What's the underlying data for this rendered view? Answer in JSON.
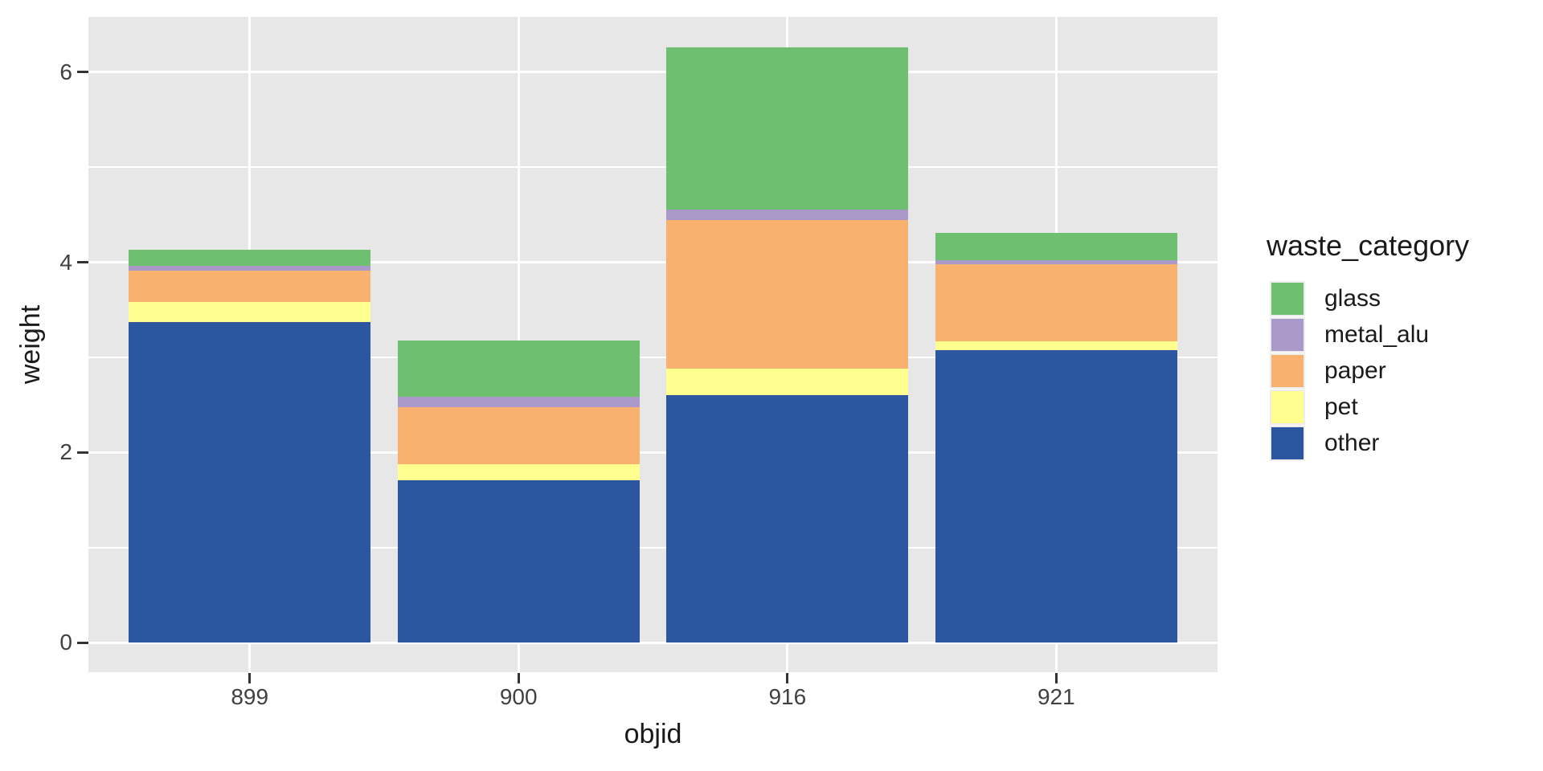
{
  "chart_data": {
    "type": "bar",
    "stacked": true,
    "title": "",
    "xlabel": "objid",
    "ylabel": "weight",
    "categories": [
      "899",
      "900",
      "916",
      "921"
    ],
    "series": [
      {
        "name": "other",
        "color": "#2d56a1",
        "values": [
          3.37,
          1.71,
          2.6,
          3.08
        ]
      },
      {
        "name": "pet",
        "color": "#ffff8f",
        "values": [
          0.21,
          0.17,
          0.28,
          0.09
        ]
      },
      {
        "name": "paper",
        "color": "#f9b170",
        "values": [
          0.33,
          0.6,
          1.56,
          0.81
        ]
      },
      {
        "name": "metal_alu",
        "color": "#aa99c9",
        "values": [
          0.05,
          0.11,
          0.11,
          0.04
        ]
      },
      {
        "name": "glass",
        "color": "#6ec070",
        "values": [
          0.17,
          0.59,
          1.71,
          0.29
        ]
      }
    ],
    "bar_totals": [
      4.13,
      3.18,
      6.26,
      4.31
    ],
    "y_ticks": [
      0,
      2,
      4,
      6
    ],
    "y_minor_ticks": [
      1,
      3,
      5
    ],
    "ylim": [
      -0.31,
      6.58
    ],
    "bar_rel_width": 0.9,
    "grid": true,
    "colors": {
      "panel_bg": "#e7e7e7",
      "grid": "#ffffff",
      "tick_text": "#404040",
      "title_text": "#1a1a1a"
    },
    "legend": {
      "title": "waste_category",
      "position": "right",
      "entries": [
        "glass",
        "metal_alu",
        "paper",
        "pet",
        "other"
      ]
    }
  }
}
